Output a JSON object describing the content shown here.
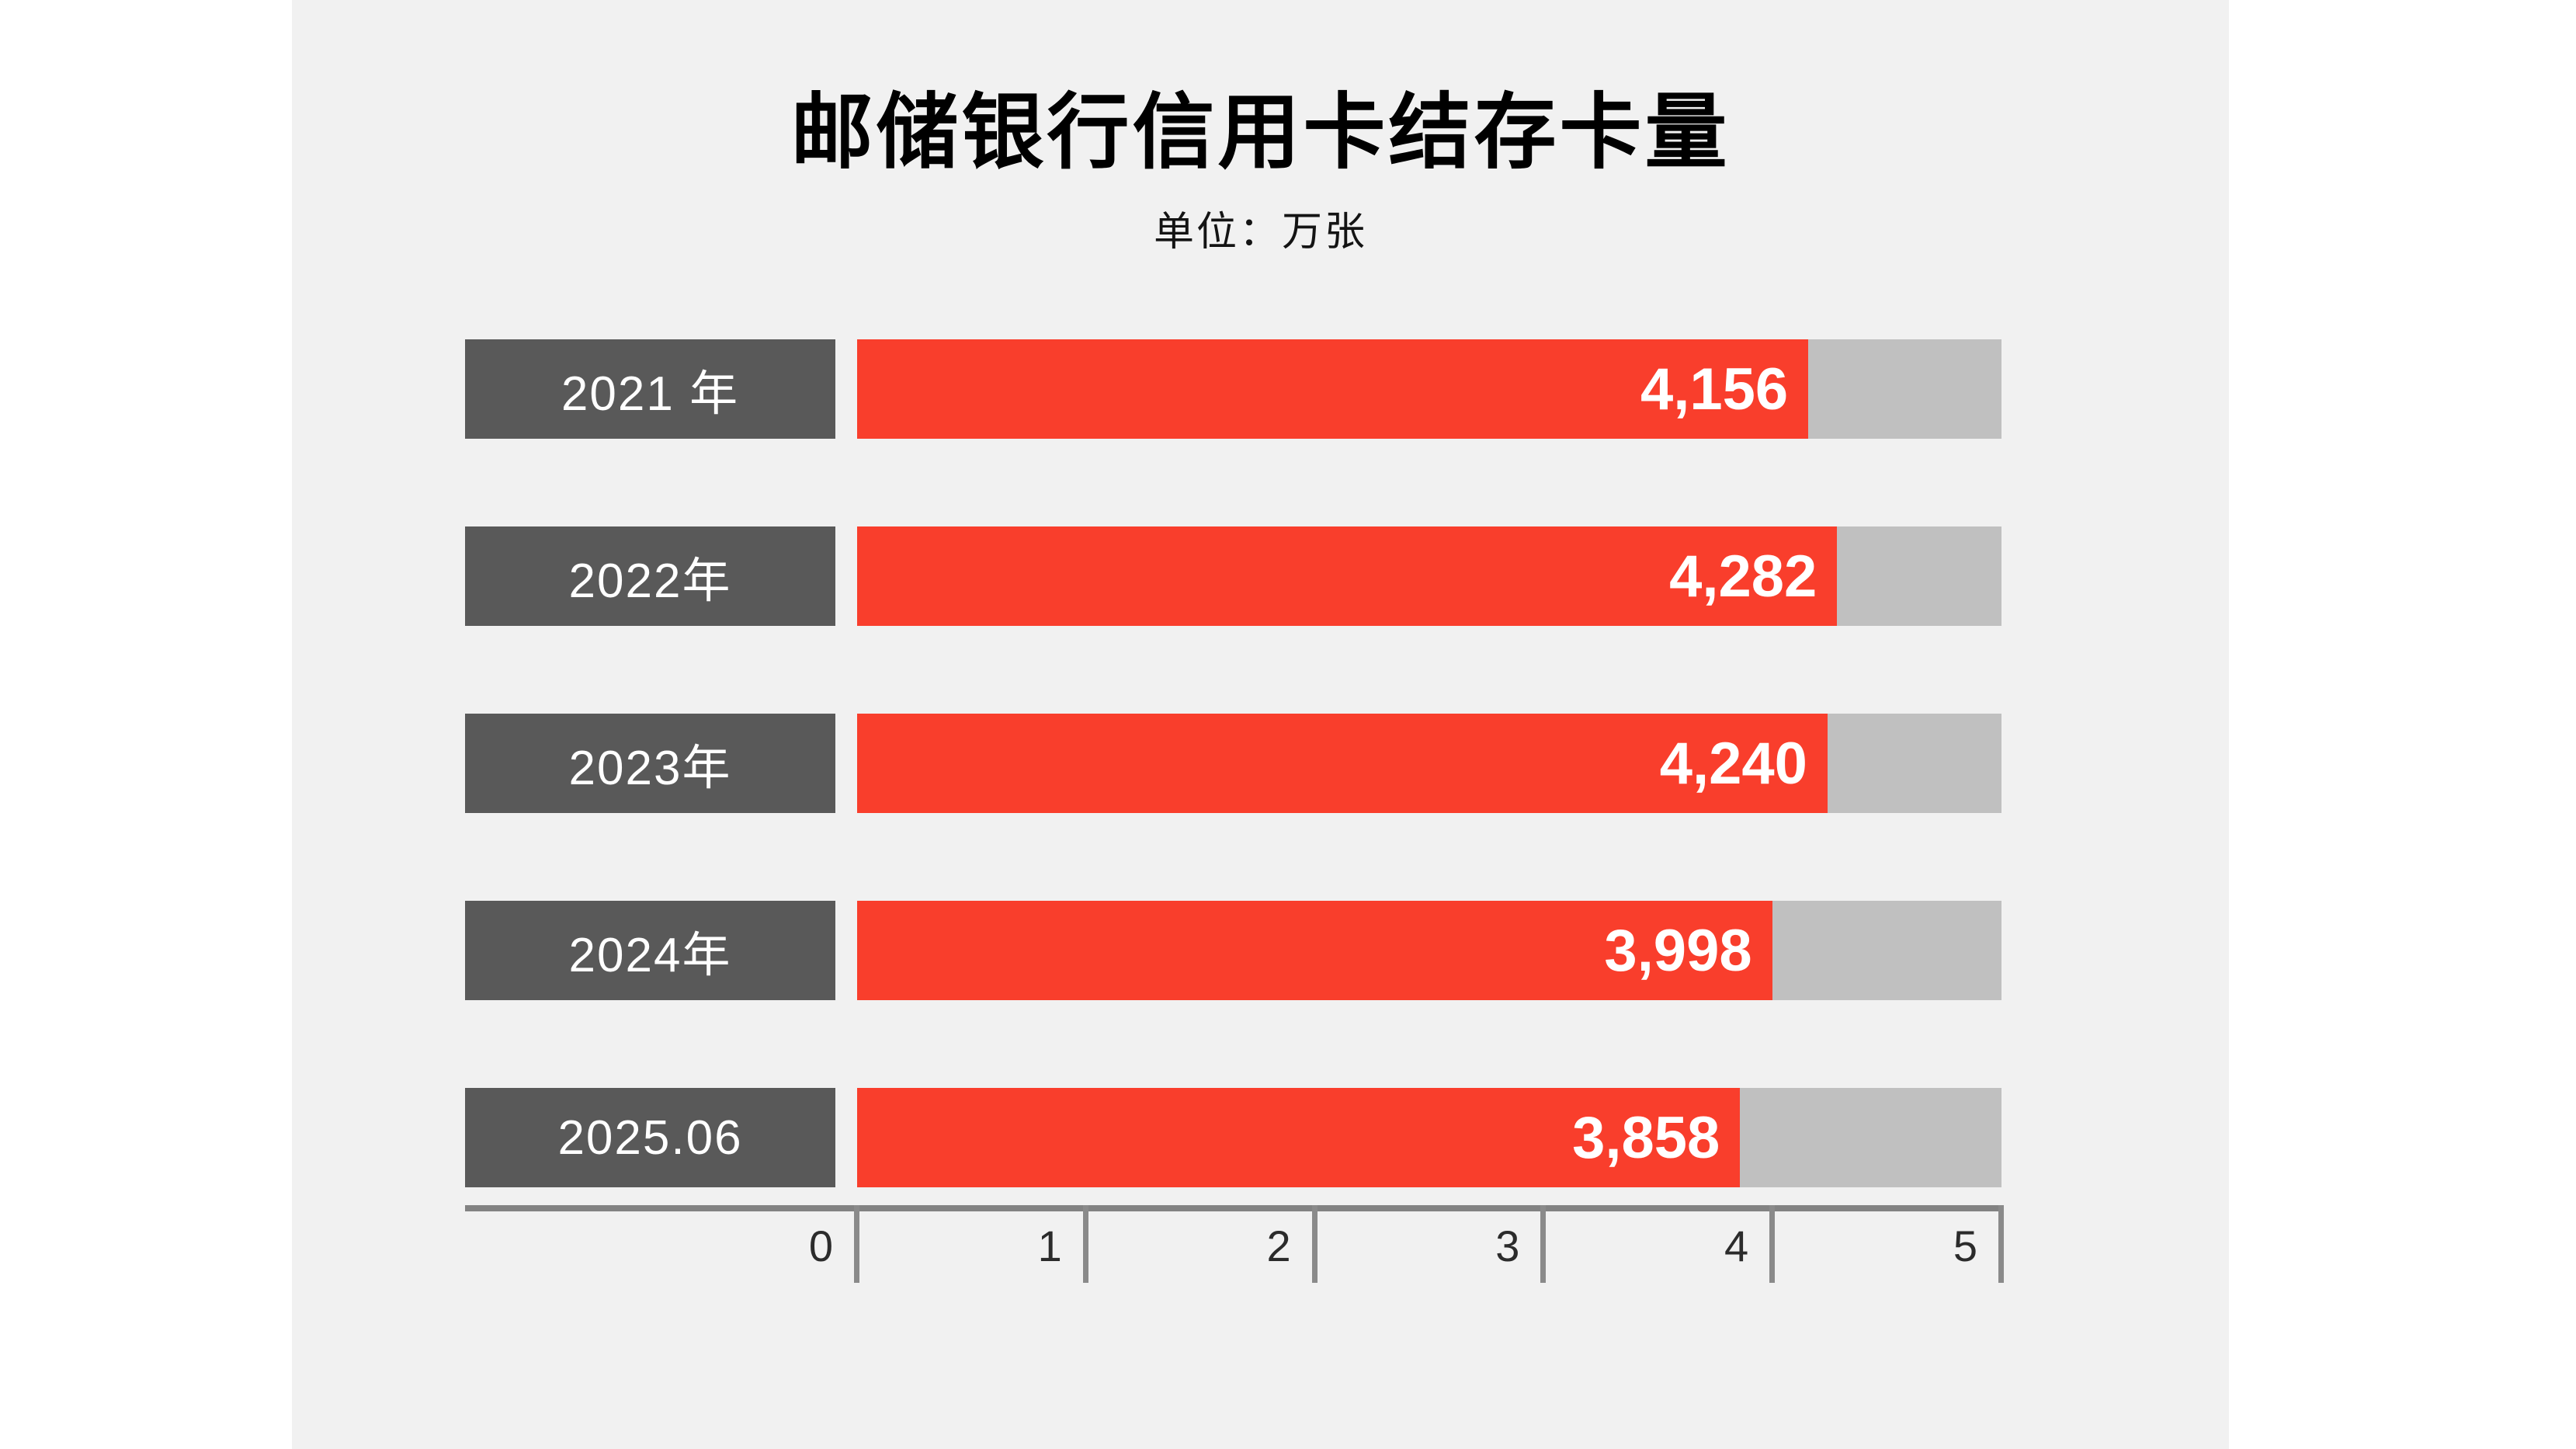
{
  "page": {
    "background": "#ffffff",
    "content_background": "#f1f1f1"
  },
  "chart_data": {
    "type": "bar",
    "orientation": "horizontal",
    "title": "邮储银行信用卡结存卡量",
    "subtitle": "单位：万张",
    "unit": "万张",
    "categories": [
      "2021 年",
      "2022年",
      "2023年",
      "2024年",
      "2025.06"
    ],
    "values": [
      4156,
      4282,
      4240,
      3998,
      3858
    ],
    "value_labels": [
      "4,156",
      "4,282",
      "4,240",
      "3,998",
      "3,858"
    ],
    "xlim": [
      0,
      5000
    ],
    "x_tick_values": [
      0,
      1000,
      2000,
      3000,
      4000,
      5000
    ],
    "x_tick_labels": [
      "0",
      "1",
      "2",
      "3",
      "4",
      "5"
    ],
    "grid": false,
    "legend_position": "none",
    "colors": {
      "bar_fill": "#f93e2c",
      "bar_track": "#c0c0c0",
      "category_box": "#595959",
      "bar_label_text": "#ffffff",
      "axis_line": "#828282",
      "tick_text": "#2b2b2b",
      "title_text": "#000000"
    }
  }
}
